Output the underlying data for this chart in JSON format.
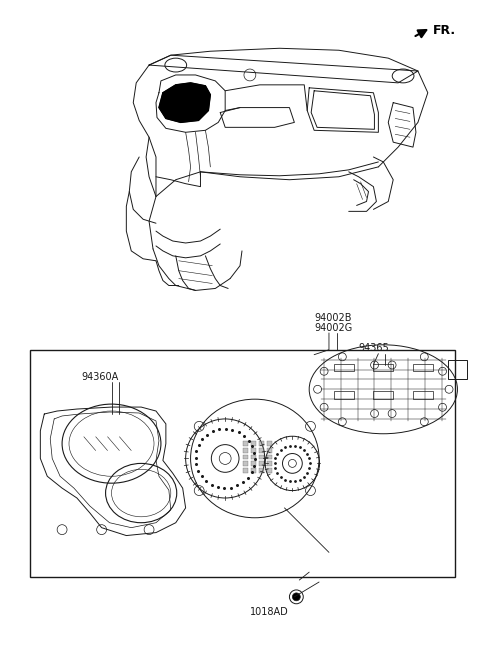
{
  "bg_color": "#ffffff",
  "line_color": "#1a1a1a",
  "fig_width": 4.8,
  "fig_height": 6.55,
  "dpi": 100,
  "fr_label": "FR.",
  "label_94002B": "94002B",
  "label_94002G": "94002G",
  "label_94365": "94365",
  "label_94360A": "94360A",
  "label_1018AD": "1018AD",
  "font_size": 7.0
}
